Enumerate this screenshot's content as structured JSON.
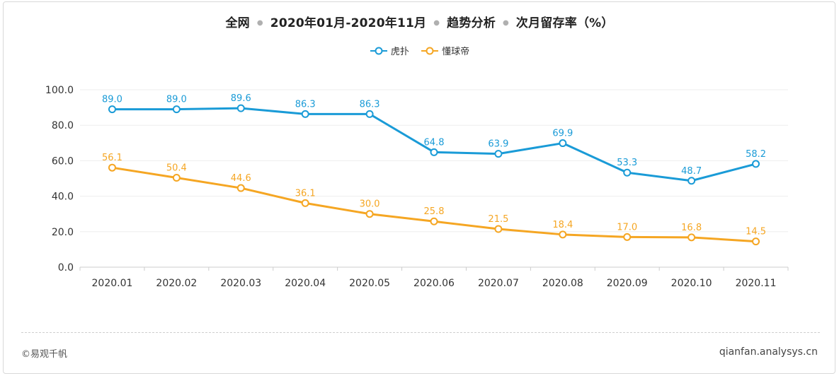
{
  "header": {
    "title_parts": [
      "全网",
      "2020年01月-2020年11月",
      "趋势分析",
      "次月留存率（%）"
    ]
  },
  "footer": {
    "copyright": "©易观千帆",
    "site": "qianfan.analysys.cn"
  },
  "colors": {
    "series_1": "#1a9bd7",
    "series_2": "#f5a623",
    "grid": "#eeeeee",
    "axis": "#cccccc"
  },
  "chart_data": {
    "type": "line",
    "categories": [
      "2020.01",
      "2020.02",
      "2020.03",
      "2020.04",
      "2020.05",
      "2020.06",
      "2020.07",
      "2020.08",
      "2020.09",
      "2020.10",
      "2020.11"
    ],
    "series": [
      {
        "name": "虎扑",
        "values": [
          89.0,
          89.0,
          89.6,
          86.3,
          86.3,
          64.8,
          63.9,
          69.9,
          53.3,
          48.7,
          58.2
        ]
      },
      {
        "name": "懂球帝",
        "values": [
          56.1,
          50.4,
          44.6,
          36.1,
          30.0,
          25.8,
          21.5,
          18.4,
          17.0,
          16.8,
          14.5
        ]
      }
    ],
    "y_ticks": [
      "0.0",
      "20.0",
      "40.0",
      "60.0",
      "80.0",
      "100.0"
    ],
    "ylim": [
      0,
      100
    ],
    "legend_position": "top-center",
    "grid": true
  }
}
